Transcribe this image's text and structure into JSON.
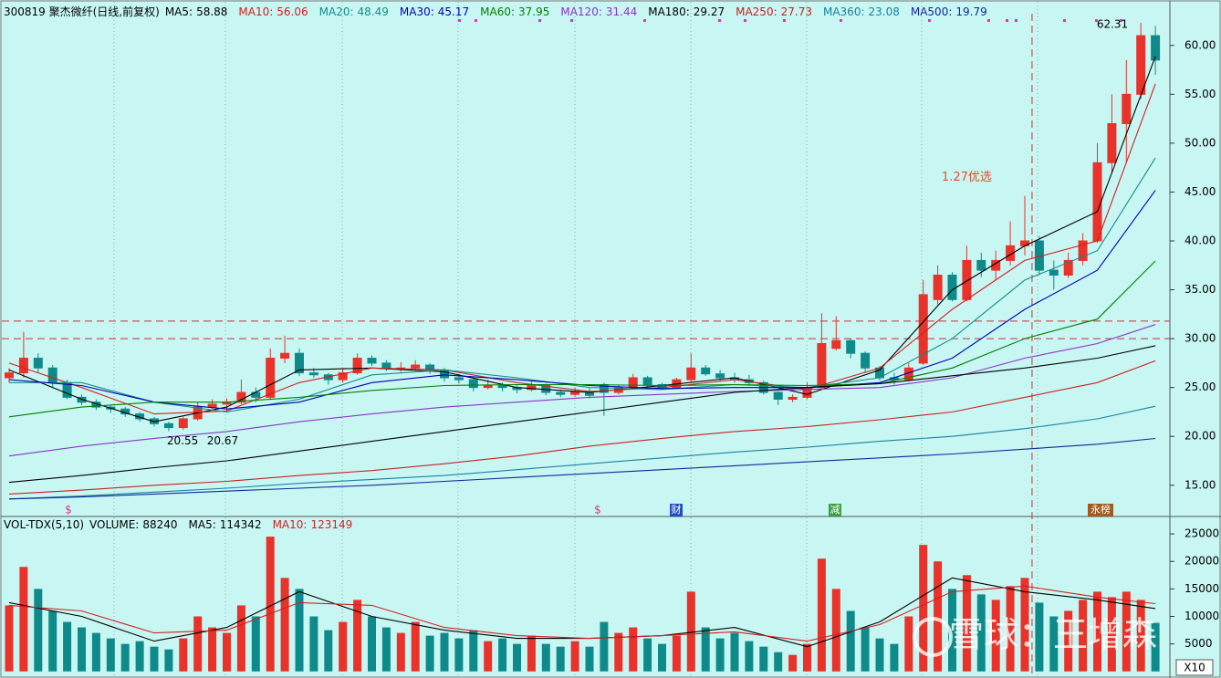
{
  "chart_data": [
    {
      "type": "candlestick",
      "title": "300819 聚杰微纤(日线,前复权)",
      "open": [
        26,
        26.5,
        28,
        27,
        25.5,
        24,
        23.5,
        23,
        22.8,
        22.3,
        21.8,
        21.3,
        20.9,
        21.8,
        23,
        23.3,
        23.5,
        24.5,
        24,
        28,
        28.5,
        26.5,
        26.3,
        25.8,
        26.5,
        28,
        27.5,
        27,
        27,
        27.3,
        26.8,
        26,
        25.8,
        25,
        25.2,
        25,
        24.8,
        25.2,
        24.5,
        24.3,
        24.6,
        25.3,
        24.5,
        25,
        26,
        25.3,
        25,
        25.8,
        27,
        26.4,
        26,
        25.8,
        25.5,
        24.5,
        23.8,
        24,
        25,
        29,
        29.8,
        28.5,
        27,
        26,
        25.8,
        27.5,
        34,
        36.5,
        34,
        38,
        37,
        38,
        39.5,
        40,
        37,
        36.5,
        38,
        40,
        48,
        52,
        55,
        61
      ],
      "high": [
        27,
        30.7,
        28.5,
        27.3,
        25.8,
        24.3,
        23.8,
        23.2,
        23,
        22.5,
        22,
        21.5,
        22,
        23.5,
        23.8,
        23.9,
        25.8,
        25,
        29,
        30.3,
        29,
        27,
        26.5,
        27,
        28.5,
        28.3,
        27.8,
        27.6,
        27.8,
        27.5,
        27,
        26.4,
        26,
        25.8,
        25.5,
        25.3,
        25.6,
        25.4,
        24.8,
        25,
        25,
        25.5,
        25.3,
        26.4,
        26.2,
        25.5,
        26,
        28.5,
        27.3,
        26.8,
        26.5,
        26.3,
        25.7,
        24.6,
        24.3,
        25.5,
        32.6,
        32.3,
        30,
        28.7,
        27.2,
        26.5,
        27.5,
        36,
        37.5,
        36.8,
        39.5,
        38.8,
        39,
        42,
        44.6,
        40.5,
        38,
        38.8,
        40.8,
        50,
        55,
        58.5,
        62.31,
        62
      ],
      "low": [
        25.5,
        26,
        26.5,
        25,
        23.8,
        23.2,
        22.7,
        22.4,
        22,
        21.5,
        21,
        20.55,
        20.67,
        21.6,
        22.8,
        22.5,
        23.3,
        23.5,
        23.8,
        27.5,
        26.2,
        26,
        25.3,
        25.5,
        26.3,
        27.2,
        26.7,
        26.6,
        26.8,
        26.4,
        25.6,
        25.4,
        24.6,
        24.8,
        24.6,
        24.4,
        24.6,
        24.2,
        24,
        24.1,
        23.9,
        22.1,
        24.3,
        24.8,
        25,
        24.8,
        24.9,
        25.6,
        26.2,
        25.7,
        25.5,
        25.2,
        24.3,
        23.2,
        23.5,
        23.8,
        24.9,
        28.8,
        28,
        26.5,
        25.7,
        25.3,
        25.6,
        27.3,
        33.5,
        33.8,
        33.8,
        36.3,
        36,
        37.5,
        38.5,
        36.5,
        35,
        36.2,
        37.5,
        39.8,
        47,
        48,
        54.5,
        57
      ],
      "close": [
        26.5,
        28,
        27,
        25.5,
        24,
        23.5,
        23,
        22.8,
        22.3,
        21.8,
        21.3,
        20.9,
        21.8,
        23,
        23.3,
        23.5,
        24.5,
        24,
        28,
        28.5,
        26.5,
        26.3,
        25.8,
        26.5,
        28,
        27.5,
        27,
        27,
        27.3,
        26.8,
        26,
        25.8,
        25,
        25.2,
        25,
        24.8,
        25.2,
        24.5,
        24.3,
        24.6,
        24.2,
        24.5,
        25,
        26,
        25.3,
        25,
        25.8,
        27,
        26.4,
        26,
        25.8,
        25.5,
        24.5,
        23.8,
        24,
        25,
        29.5,
        29.8,
        28.5,
        27,
        26,
        25.8,
        27,
        34.5,
        36.5,
        34,
        38,
        37,
        38,
        39.5,
        40,
        37,
        36.5,
        38,
        40,
        48,
        52,
        55,
        61,
        58.5
      ],
      "up_color": "#e8322a",
      "down_color": "#0f8a8a",
      "ylim": [
        11.9,
        63.9
      ],
      "yticks": [
        {
          "value": 15,
          "label": "15.00"
        },
        {
          "value": 20,
          "label": "20.00"
        },
        {
          "value": 25,
          "label": "25.00"
        },
        {
          "value": 30,
          "label": "30.00"
        },
        {
          "value": 35,
          "label": "35.00"
        },
        {
          "value": 40,
          "label": "40.00"
        },
        {
          "value": 45,
          "label": "45.00"
        },
        {
          "value": 50,
          "label": "50.00"
        },
        {
          "value": 55,
          "label": "55.00"
        },
        {
          "value": 60,
          "label": "60.00"
        }
      ],
      "ma_x": [
        0,
        5,
        10,
        15,
        20,
        25,
        30,
        35,
        40,
        45,
        50,
        55,
        60,
        65,
        70,
        75,
        79
      ],
      "series": [
        {
          "name": "MA5:",
          "color": "#000000",
          "values": [
            26.8,
            23.8,
            21.5,
            23,
            26.8,
            27,
            26.6,
            25,
            24.5,
            25.2,
            26,
            24.3,
            26.8,
            35,
            39.5,
            43,
            58.88
          ]
        },
        {
          "name": "MA10:",
          "color": "#d42020",
          "values": [
            27.5,
            25,
            22.3,
            22.6,
            25.5,
            27,
            26.8,
            25.5,
            24.6,
            25,
            25.8,
            24.8,
            27,
            33,
            38,
            40,
            56.06
          ]
        },
        {
          "name": "MA20:",
          "color": "#178c8c",
          "values": [
            25.5,
            25.5,
            23.5,
            22.5,
            23.8,
            26.3,
            26.8,
            26,
            25,
            24.8,
            25.3,
            25,
            26,
            30,
            36,
            39,
            48.49
          ]
        },
        {
          "name": "MA30:",
          "color": "#0000b4",
          "values": [
            25.8,
            25.2,
            23.5,
            22.8,
            23.5,
            25.5,
            26.3,
            25.8,
            25.2,
            24.9,
            25,
            25,
            25.5,
            28,
            33,
            37,
            45.17
          ]
        },
        {
          "name": "MA60:",
          "color": "#008000",
          "values": [
            22,
            23,
            23.5,
            23.5,
            24,
            24.7,
            25.2,
            25.3,
            25.3,
            25.2,
            25.3,
            25.2,
            25.4,
            27,
            30,
            32,
            37.95
          ]
        },
        {
          "name": "MA120:",
          "color": "#8a34c8",
          "values": [
            18,
            19,
            19.8,
            20.5,
            21.5,
            22.3,
            23,
            23.5,
            24,
            24.3,
            24.6,
            24.8,
            25,
            26,
            28,
            29.5,
            31.44
          ]
        },
        {
          "name": "MA180:",
          "color": "#000000",
          "values": [
            15.3,
            16,
            16.8,
            17.5,
            18.5,
            19.5,
            20.5,
            21.5,
            22.5,
            23.5,
            24.5,
            25,
            25.4,
            26.2,
            27,
            28,
            29.27
          ]
        },
        {
          "name": "MA250:",
          "color": "#c82020",
          "values": [
            14.1,
            14.5,
            15,
            15.4,
            16,
            16.5,
            17.2,
            18,
            19,
            19.8,
            20.5,
            21,
            21.7,
            22.5,
            24,
            25.5,
            27.73
          ]
        },
        {
          "name": "MA360:",
          "color": "#1a80a0",
          "values": [
            13.6,
            13.9,
            14.3,
            14.7,
            15.2,
            15.6,
            16,
            16.6,
            17.2,
            17.8,
            18.4,
            18.9,
            19.5,
            20,
            20.8,
            21.8,
            23.08
          ]
        },
        {
          "name": "MA500:",
          "color": "#102a9a",
          "values": [
            13.6,
            13.8,
            14.1,
            14.4,
            14.7,
            15,
            15.4,
            15.8,
            16.2,
            16.6,
            17,
            17.4,
            17.8,
            18.2,
            18.7,
            19.2,
            19.79
          ]
        }
      ],
      "hlines": [
        {
          "value": 31.8,
          "color": "#c83030"
        },
        {
          "value": 30,
          "color": "#c83030"
        }
      ],
      "vline_x": 70.5,
      "annotations": [
        {
          "text": "1.27优选",
          "x": 66,
          "y": 46.5,
          "color": "#e0502a"
        }
      ],
      "event_icons": [
        "$",
        "$",
        "财",
        "减",
        "永榜"
      ]
    },
    {
      "type": "bar",
      "title": "VOL-TDX(5,10)",
      "header_items": [
        {
          "name": "VOLUME:",
          "value": 88240,
          "color": "#000000"
        },
        {
          "name": "MA5:",
          "value": 114342,
          "color": "#000000"
        },
        {
          "name": "MA10:",
          "value": 123149,
          "color": "#d42020"
        }
      ],
      "values": [
        12000,
        19000,
        15000,
        11000,
        9000,
        8000,
        7000,
        6000,
        5000,
        5500,
        4500,
        4000,
        6000,
        10000,
        8000,
        7000,
        12000,
        10000,
        24500,
        17000,
        15000,
        10000,
        7500,
        9000,
        13000,
        10000,
        8000,
        7000,
        9000,
        6500,
        7000,
        6000,
        7500,
        5500,
        6000,
        5000,
        6500,
        5000,
        4500,
        5500,
        4500,
        9000,
        7000,
        8000,
        6000,
        5000,
        6500,
        14500,
        8000,
        6000,
        7000,
        5500,
        4500,
        3500,
        3000,
        5000,
        20500,
        15000,
        11000,
        8000,
        6000,
        5000,
        10000,
        23000,
        20000,
        15000,
        17500,
        14000,
        13000,
        15500,
        17000,
        12500,
        10000,
        11000,
        13000,
        14500,
        13500,
        14500,
        13000,
        8824
      ],
      "ylim": [
        -700,
        28000
      ],
      "yticks": [
        5000,
        10000,
        15000,
        20000,
        25000
      ],
      "unit_label": "X10",
      "ma_x": [
        0,
        5,
        10,
        15,
        20,
        25,
        30,
        35,
        40,
        45,
        50,
        55,
        60,
        65,
        70,
        75,
        79
      ],
      "series": [
        {
          "color": "#000000",
          "values": [
            12500,
            10000,
            5500,
            8000,
            14500,
            10000,
            7500,
            6000,
            6000,
            6500,
            8000,
            4500,
            9000,
            17000,
            14500,
            13000,
            11434
          ]
        },
        {
          "color": "#d42020",
          "values": [
            12000,
            11000,
            7000,
            7500,
            12500,
            12000,
            8000,
            6500,
            6000,
            6500,
            7200,
            5500,
            8500,
            14500,
            15500,
            13500,
            12315
          ]
        }
      ]
    }
  ],
  "watermark": "雪球：王增森"
}
